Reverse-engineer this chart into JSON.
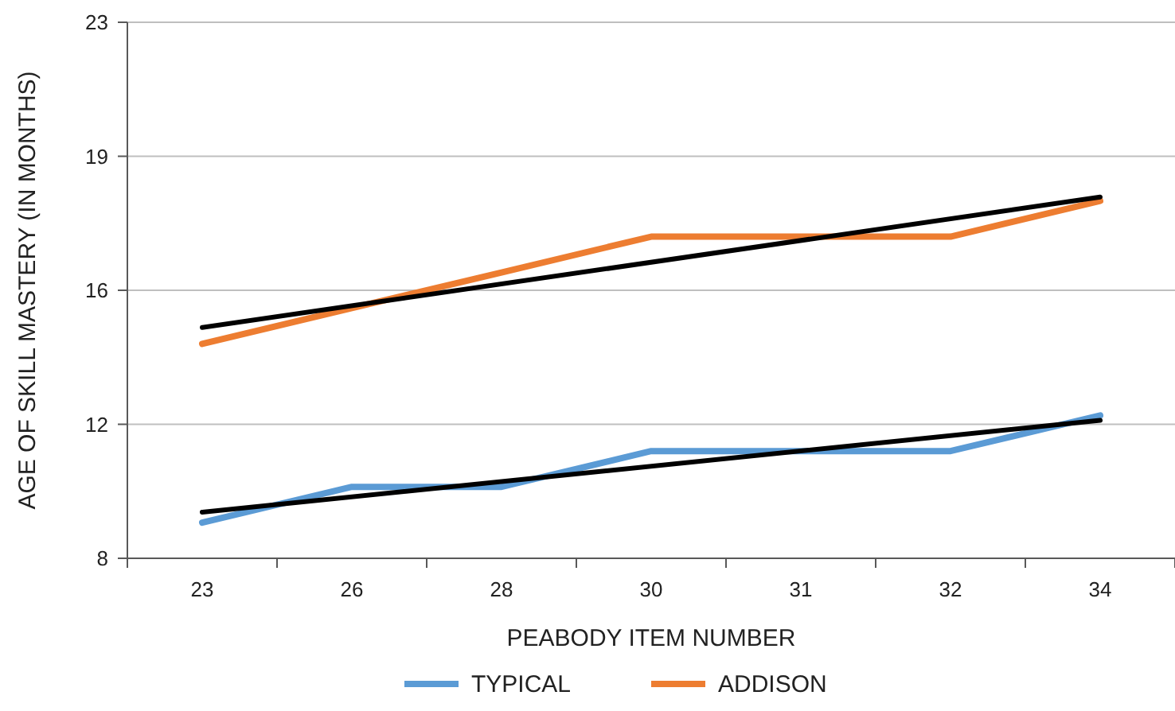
{
  "chart_data": {
    "type": "line",
    "xlabel": "PEABODY ITEM NUMBER",
    "ylabel": "AGE OF SKILL MASTERY (IN MONTHS)",
    "categories": [
      "23",
      "26",
      "28",
      "30",
      "31",
      "32",
      "34"
    ],
    "series": [
      {
        "name": "TYPICAL",
        "color": "#5b9bd5",
        "values": [
          9,
          10,
          10,
          11,
          11,
          11,
          12
        ]
      },
      {
        "name": "ADDISON",
        "color": "#ed7d31",
        "values": [
          14,
          15,
          16,
          17,
          17,
          17,
          18
        ]
      },
      {
        "type": "line",
        "color": "#000000",
        "x": [
          "23",
          "34"
        ],
        "values": [
          9.29,
          11.86
        ]
      },
      {
        "type": "line",
        "color": "#000000",
        "x": [
          "23",
          "34"
        ],
        "values": [
          14.46,
          18.11
        ]
      }
    ],
    "ylim": [
      8,
      23
    ],
    "yticks": [
      8,
      {
        "value": 11.75,
        "label": "12"
      },
      {
        "value": 15.5,
        "label": "16"
      },
      {
        "value": 19.25,
        "label": "19"
      },
      23
    ],
    "grid": "y",
    "legend": "bottom",
    "marker": "none",
    "line_style": "solid"
  }
}
